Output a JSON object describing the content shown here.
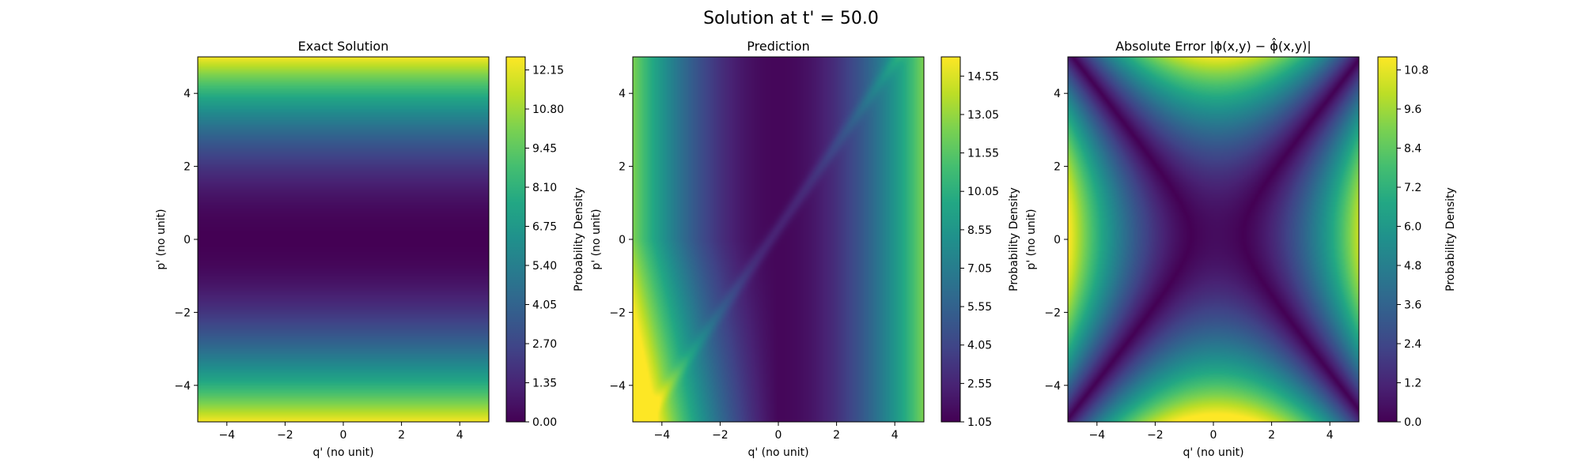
{
  "figure": {
    "suptitle": "Solution at t' = 50.0"
  },
  "chart_data": [
    {
      "type": "heatmap",
      "title": "Exact Solution",
      "xlabel": "q' (no unit)",
      "ylabel": "p' (no unit)",
      "xlim": [
        -5,
        5
      ],
      "ylim": [
        -5,
        5
      ],
      "xticks": [
        -4,
        -2,
        0,
        2,
        4
      ],
      "yticks": [
        -4,
        -2,
        0,
        2,
        4
      ],
      "colormap": "viridis",
      "field": "p_squared_half",
      "colorbar": {
        "label": "Probability Density",
        "range": [
          0.0,
          12.6
        ],
        "ticks": [
          "0.00",
          "1.35",
          "2.70",
          "4.05",
          "5.40",
          "6.75",
          "8.10",
          "9.45",
          "10.80",
          "12.15"
        ]
      }
    },
    {
      "type": "heatmap",
      "title": "Prediction",
      "xlabel": "q' (no unit)",
      "ylabel": "p' (no unit)",
      "xlim": [
        -5,
        5
      ],
      "ylim": [
        -5,
        5
      ],
      "xticks": [
        -4,
        -2,
        0,
        2,
        4
      ],
      "yticks": [
        -4,
        -2,
        0,
        2,
        4
      ],
      "colormap": "viridis",
      "field": "prediction",
      "colorbar": {
        "label": "Probability Density",
        "range": [
          1.05,
          15.3
        ],
        "ticks": [
          "1.05",
          "2.55",
          "4.05",
          "5.55",
          "7.05",
          "8.55",
          "10.05",
          "11.55",
          "13.05",
          "14.55"
        ]
      }
    },
    {
      "type": "heatmap",
      "title": "Absolute Error |ϕ(x,y) − ϕ̂(x,y)|",
      "xlabel": "q' (no unit)",
      "ylabel": "p' (no unit)",
      "xlim": [
        -5,
        5
      ],
      "ylim": [
        -5,
        5
      ],
      "xticks": [
        -4,
        -2,
        0,
        2,
        4
      ],
      "yticks": [
        -4,
        -2,
        0,
        2,
        4
      ],
      "colormap": "viridis",
      "field": "abs_error",
      "colorbar": {
        "label": "Probability Density",
        "range": [
          0.0,
          11.2
        ],
        "ticks": [
          "0.0",
          "1.2",
          "2.4",
          "3.6",
          "4.8",
          "6.0",
          "7.2",
          "8.4",
          "9.6",
          "10.8"
        ]
      }
    }
  ]
}
